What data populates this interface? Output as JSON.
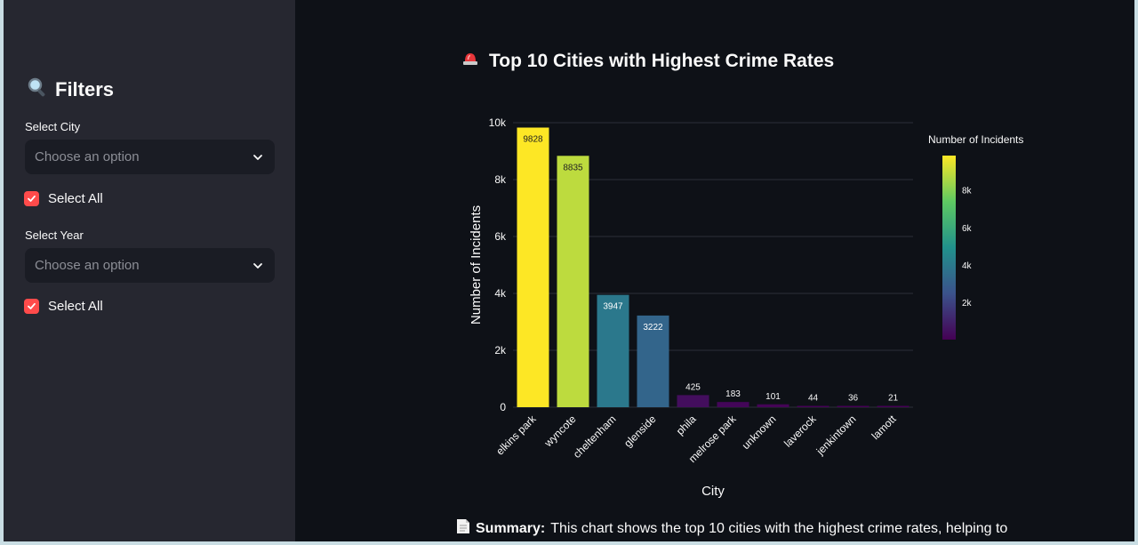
{
  "sidebar": {
    "title": "Filters",
    "city_label": "Select City",
    "city_placeholder": "Choose an option",
    "city_select_all": "Select All",
    "year_label": "Select Year",
    "year_placeholder": "Choose an option",
    "year_select_all": "Select All"
  },
  "main": {
    "title": "Top 10 Cities with Highest Crime Rates",
    "summary_label": "Summary:",
    "summary_text": "This chart shows the top 10 cities with the highest crime rates, helping to"
  },
  "colors": {
    "sidebar_bg": "#262730",
    "main_bg": "#0e1117",
    "accent": "#ff4b4b"
  },
  "chart_data": {
    "type": "bar",
    "categories": [
      "elkins park",
      "wyncote",
      "cheltenham",
      "glenside",
      "phila",
      "melrose park",
      "unknown",
      "laverock",
      "jenkintown",
      "lamott"
    ],
    "values": [
      9828,
      8835,
      3947,
      3222,
      425,
      183,
      101,
      44,
      36,
      21
    ],
    "xlabel": "City",
    "ylabel": "Number of Incidents",
    "ylim": [
      0,
      10000
    ],
    "yticks": [
      0,
      2000,
      4000,
      6000,
      8000,
      10000
    ],
    "ytick_labels": [
      "0",
      "2k",
      "4k",
      "6k",
      "8k",
      "10k"
    ],
    "grid": true,
    "colorscale": "Viridis",
    "colorbar": {
      "title": "Number of Incidents",
      "ticks": [
        2000,
        4000,
        6000,
        8000
      ],
      "tick_labels": [
        "2k",
        "4k",
        "6k",
        "8k"
      ],
      "range": [
        21,
        9828
      ]
    },
    "legend_placement": "right"
  }
}
